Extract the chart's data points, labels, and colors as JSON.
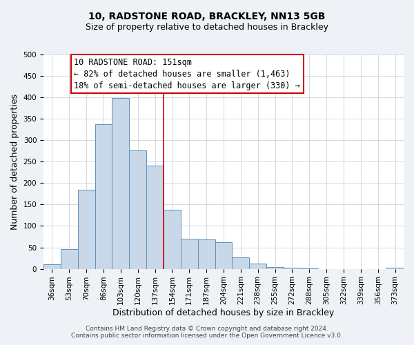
{
  "title": "10, RADSTONE ROAD, BRACKLEY, NN13 5GB",
  "subtitle": "Size of property relative to detached houses in Brackley",
  "xlabel": "Distribution of detached houses by size in Brackley",
  "ylabel": "Number of detached properties",
  "bar_labels": [
    "36sqm",
    "53sqm",
    "70sqm",
    "86sqm",
    "103sqm",
    "120sqm",
    "137sqm",
    "154sqm",
    "171sqm",
    "187sqm",
    "204sqm",
    "221sqm",
    "238sqm",
    "255sqm",
    "272sqm",
    "288sqm",
    "305sqm",
    "322sqm",
    "339sqm",
    "356sqm",
    "373sqm"
  ],
  "bar_values": [
    10,
    46,
    184,
    338,
    398,
    277,
    241,
    137,
    70,
    68,
    62,
    26,
    12,
    4,
    2,
    1,
    0,
    0,
    0,
    0,
    2
  ],
  "bar_color": "#c8d8e8",
  "bar_edge_color": "#6090b8",
  "vline_x": 7.0,
  "vline_color": "#cc0000",
  "annotation_text_line1": "10 RADSTONE ROAD: 151sqm",
  "annotation_text_line2": "← 82% of detached houses are smaller (1,463)",
  "annotation_text_line3": "18% of semi-detached houses are larger (330) →",
  "ylim": [
    0,
    500
  ],
  "yticks": [
    0,
    50,
    100,
    150,
    200,
    250,
    300,
    350,
    400,
    450,
    500
  ],
  "footer_line1": "Contains HM Land Registry data © Crown copyright and database right 2024.",
  "footer_line2": "Contains public sector information licensed under the Open Government Licence v3.0.",
  "background_color": "#eef2f6",
  "plot_background_color": "#ffffff",
  "title_fontsize": 10,
  "subtitle_fontsize": 9,
  "axis_label_fontsize": 9,
  "tick_fontsize": 7.5,
  "footer_fontsize": 6.5,
  "annotation_fontsize": 8.5
}
